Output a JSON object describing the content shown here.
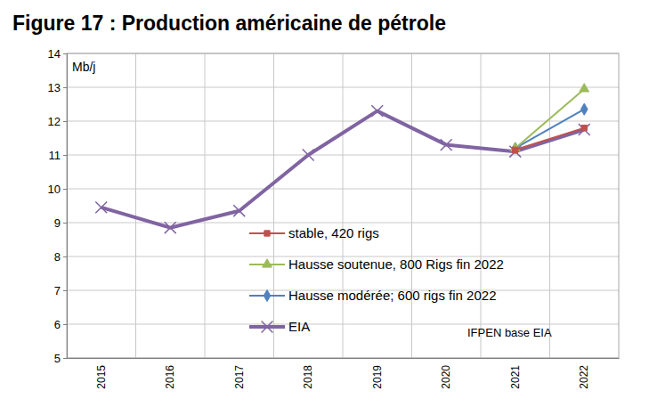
{
  "chart_data": {
    "type": "line",
    "title": "Figure 17 : Production américaine de pétrole",
    "y_label": "Mb/j",
    "annotations": [
      "IFPEN base EIA"
    ],
    "categories": [
      "2015",
      "2016",
      "2017",
      "2018",
      "2019",
      "2020",
      "2021",
      "2022"
    ],
    "series": [
      {
        "name": "stable, 420 rigs",
        "color": "#c0504d",
        "marker": "square",
        "values": [
          null,
          null,
          null,
          null,
          null,
          null,
          11.15,
          11.8
        ]
      },
      {
        "name": "Hausse soutenue, 800 Rigs fin 2022",
        "color": "#9bbb59",
        "marker": "triangle",
        "values": [
          null,
          null,
          null,
          null,
          null,
          null,
          11.2,
          12.95
        ]
      },
      {
        "name": "Hausse modérée; 600 rigs fin 2022",
        "color": "#4f81bd",
        "marker": "diamond",
        "values": [
          null,
          null,
          null,
          null,
          null,
          null,
          11.2,
          12.35
        ]
      },
      {
        "name": "EIA",
        "color": "#8064a2",
        "marker": "x",
        "values": [
          9.45,
          8.85,
          9.35,
          11.0,
          12.3,
          11.3,
          11.1,
          11.75
        ]
      }
    ],
    "ylim": [
      5,
      14
    ],
    "yticks": [
      5,
      6,
      7,
      8,
      9,
      10,
      11,
      12,
      13,
      14
    ],
    "grid": true,
    "legend": "lower right"
  }
}
